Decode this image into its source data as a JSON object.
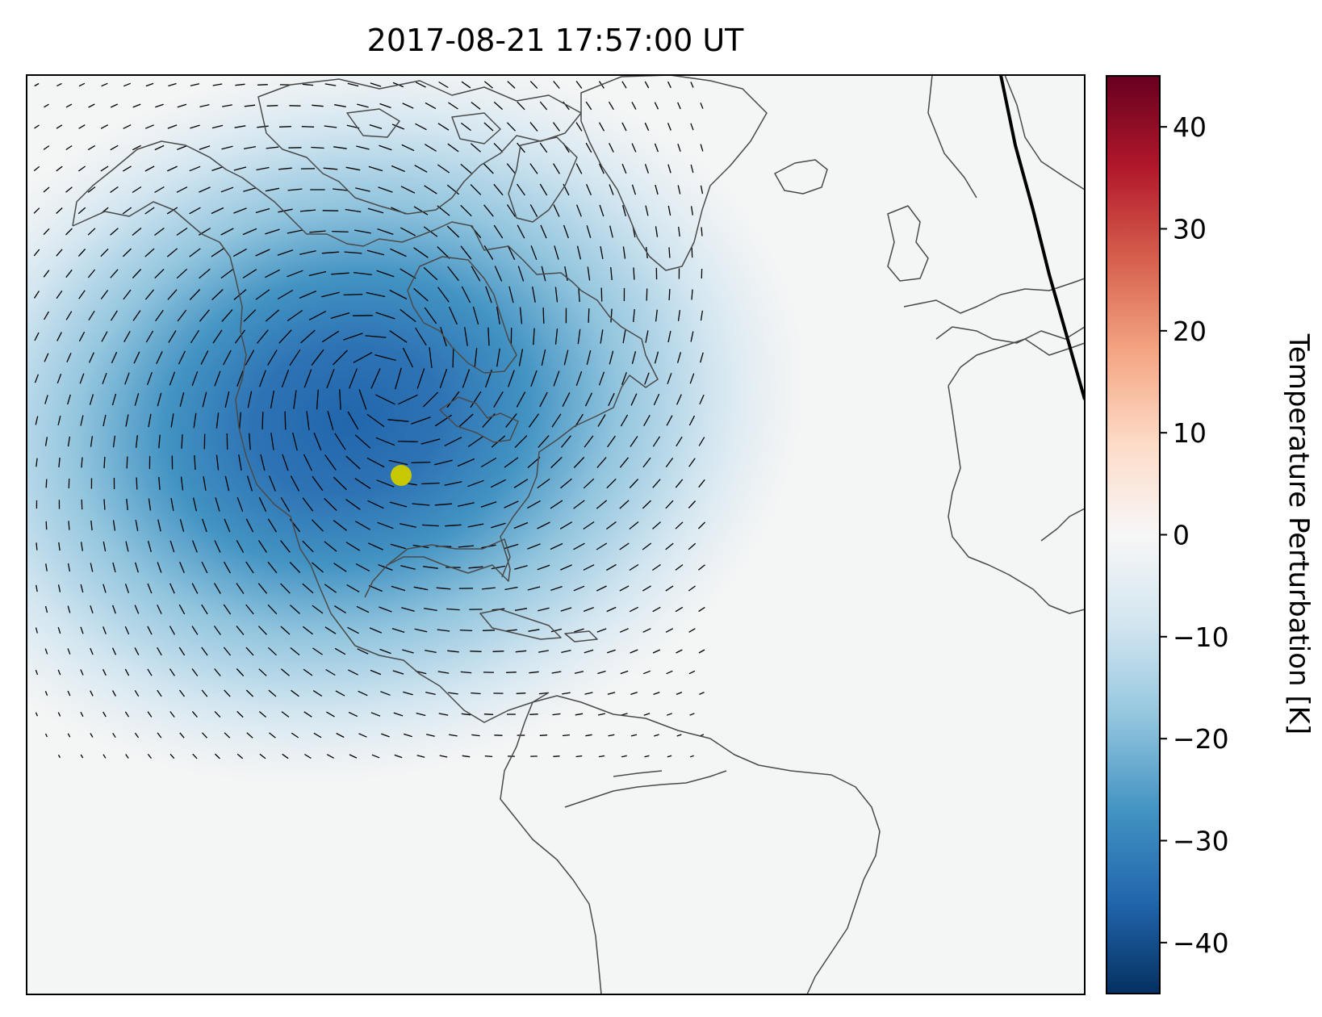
{
  "title": "2017-08-21 17:57:00 UT",
  "colorbar": {
    "label": "Temperature Perturbation [K]",
    "range": [
      -45,
      45
    ],
    "ticks": [
      {
        "value": 40,
        "label": "40"
      },
      {
        "value": 30,
        "label": "30"
      },
      {
        "value": 20,
        "label": "20"
      },
      {
        "value": 10,
        "label": "10"
      },
      {
        "value": 0,
        "label": "0"
      },
      {
        "value": -10,
        "label": "−10"
      },
      {
        "value": -20,
        "label": "−20"
      },
      {
        "value": -30,
        "label": "−30"
      },
      {
        "value": -40,
        "label": "−40"
      }
    ],
    "colormap": "RdBu_r",
    "colors": [
      "#053061",
      "#2166ac",
      "#4393c3",
      "#92c5de",
      "#d1e5f0",
      "#f7f7f7",
      "#fddbc7",
      "#f4a582",
      "#d6604d",
      "#b2182b",
      "#67001f"
    ]
  },
  "map": {
    "region": "North Atlantic, North and South America, Western Europe and Africa",
    "background_color": "#f4f5f5",
    "coastline_color": "#4a4a4a",
    "minimum_temperature_perturbation_K": -45,
    "eclipse_marker_color": "#c8c800",
    "terminator_color": "#000000"
  }
}
